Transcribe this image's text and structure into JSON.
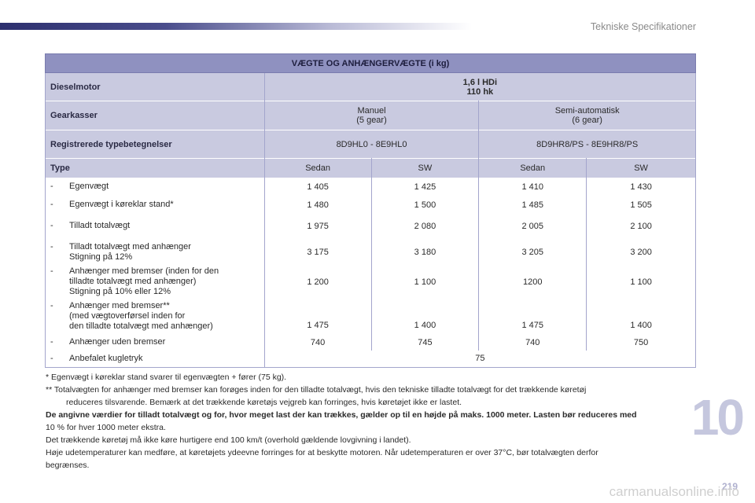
{
  "header": {
    "section_title": "Tekniske Specifikationer"
  },
  "table": {
    "title": "VÆGTE OG ANHÆNGERVÆGTE (i kg)",
    "engine_label": "Dieselmotor",
    "engine_line1": "1,6 l HDi",
    "engine_line2": "110 hk",
    "gearbox_label": "Gearkasser",
    "gearbox_manual_line1": "Manuel",
    "gearbox_manual_line2": "(5 gear)",
    "gearbox_semi_line1": "Semi-automatisk",
    "gearbox_semi_line2": "(6 gear)",
    "reg_label": "Registrerede typebetegnelser",
    "reg_manual": "8D9HL0 - 8E9HL0",
    "reg_semi": "8D9HR8/PS - 8E9HR8/PS",
    "type_label": "Type",
    "types": [
      "Sedan",
      "SW",
      "Sedan",
      "SW"
    ],
    "dash": "-",
    "rows": [
      {
        "lines": [
          "Egenvægt"
        ],
        "values": [
          "1 405",
          "1 425",
          "1 410",
          "1 430"
        ]
      },
      {
        "lines": [
          "Egenvægt i køreklar stand*"
        ],
        "values": [
          "1 480",
          "1 500",
          "1 485",
          "1 505"
        ]
      },
      {
        "lines": [
          "Tilladt totalvægt"
        ],
        "values": [
          "1 975",
          "2 080",
          "2 005",
          "2 100"
        ]
      },
      {
        "lines": [
          "Tilladt totalvægt med anhænger",
          "Stigning på 12%"
        ],
        "values": [
          "3 175",
          "3 180",
          "3 205",
          "3 200"
        ]
      },
      {
        "lines": [
          "Anhænger med bremser (inden for den",
          "tilladte totalvægt med anhænger)",
          "Stigning på 10% eller 12%"
        ],
        "values": [
          "1 200",
          "1 100",
          "1200",
          "1 100"
        ]
      },
      {
        "lines": [
          "Anhænger med bremser**",
          "(med vægtoverførsel inden for",
          "den tilladte totalvægt med anhænger)"
        ],
        "values": [
          "1 475",
          "1 400",
          "1 475",
          "1 400"
        ]
      },
      {
        "lines": [
          "Anhænger uden bremser"
        ],
        "values": [
          "740",
          "745",
          "740",
          "750"
        ]
      }
    ],
    "last_row_label": "Anbefalet kugletryk",
    "last_row_value": "75"
  },
  "notes": {
    "note1": "* Egenvægt i køreklar stand svarer til egenvægten + fører (75 kg).",
    "note2a": "** Totalvægten for anhænger med bremser kan forøges inden for den tilladte totalvægt, hvis den tekniske tilladte totalvægt for det trækkende køretøj",
    "note2b": "reduceres tilsvarende. Bemærk at det trækkende køretøjs vejgreb kan forringes, hvis køretøjet ikke er lastet.",
    "para_bold": "De angivne værdier for tilladt totalvægt og for, hvor meget last der kan trækkes, gælder op til en højde på maks. 1000 meter. Lasten bør reduceres med",
    "para_line2": "10 % for hver 1000 meter ekstra.",
    "para_line3": "Det trækkende køretøj må ikke køre hurtigere end 100 km/t (overhold gældende lovgivning i landet).",
    "para_line4": "Høje udetemperaturer kan medføre, at køretøjets ydeevne forringes for at beskytte motoren. Når udetemperaturen er over 37°C, bør totalvægten derfor",
    "para_line5": "begrænses."
  },
  "footer": {
    "chapter": "10",
    "page": "219",
    "watermark": "carmanualsonline.info"
  }
}
